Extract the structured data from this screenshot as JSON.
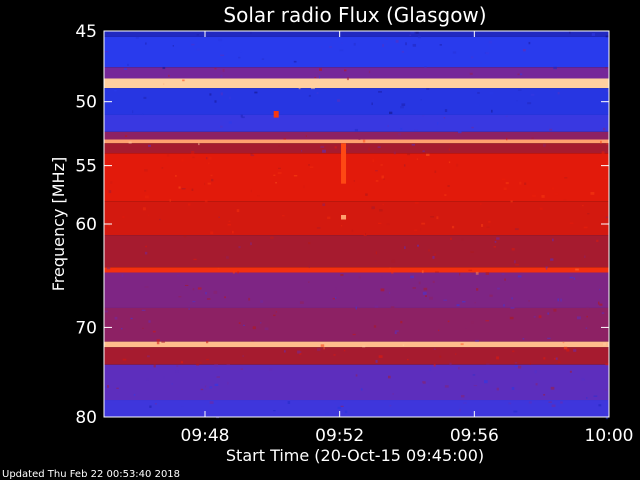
{
  "chart_data": {
    "type": "heatmap",
    "title": "Solar radio Flux (Glasgow)",
    "xlabel": "Start Time (20-Oct-15 09:45:00)",
    "ylabel": "Frequency [MHz]",
    "x_ticks": [
      "09:48",
      "09:52",
      "09:56",
      "10:00"
    ],
    "x_tick_minutes": [
      48,
      52,
      56,
      60
    ],
    "xlim_minutes": [
      45,
      60
    ],
    "y_ticks": [
      45,
      50,
      55,
      60,
      70,
      80
    ],
    "ylim": [
      45,
      80
    ],
    "y_scale": "log",
    "colormap": [
      "#00003a",
      "#1a1aa0",
      "#2a3cf0",
      "#6a2ab0",
      "#b01818",
      "#e81a0a",
      "#ff4a14",
      "#ffd0a0"
    ],
    "bands": [
      {
        "from": 45.0,
        "to": 45.4,
        "level": 0.2
      },
      {
        "from": 45.4,
        "to": 47.5,
        "level": 0.28
      },
      {
        "from": 47.5,
        "to": 48.3,
        "level": 0.45
      },
      {
        "from": 48.3,
        "to": 49.0,
        "level": 1.0
      },
      {
        "from": 49.0,
        "to": 51.0,
        "level": 0.26
      },
      {
        "from": 51.0,
        "to": 52.3,
        "level": 0.32
      },
      {
        "from": 52.3,
        "to": 52.9,
        "level": 0.5
      },
      {
        "from": 52.9,
        "to": 53.2,
        "level": 0.95
      },
      {
        "from": 53.2,
        "to": 54.0,
        "level": 0.55
      },
      {
        "from": 54.0,
        "to": 58.0,
        "level": 0.7
      },
      {
        "from": 58.0,
        "to": 61.0,
        "level": 0.66
      },
      {
        "from": 61.0,
        "to": 64.0,
        "level": 0.55
      },
      {
        "from": 64.0,
        "to": 64.5,
        "level": 0.78
      },
      {
        "from": 64.5,
        "to": 68.0,
        "level": 0.47
      },
      {
        "from": 68.0,
        "to": 71.5,
        "level": 0.5
      },
      {
        "from": 71.5,
        "to": 72.1,
        "level": 0.98
      },
      {
        "from": 72.1,
        "to": 74.0,
        "level": 0.55
      },
      {
        "from": 74.0,
        "to": 78.0,
        "level": 0.4
      },
      {
        "from": 78.0,
        "to": 80.0,
        "level": 0.33
      }
    ],
    "bursts": [
      {
        "t": 52.1,
        "f_from": 53.2,
        "f_to": 56.5,
        "level": 0.85
      },
      {
        "t": 52.1,
        "f_from": 59.2,
        "f_to": 59.6,
        "level": 0.95
      },
      {
        "t": 50.1,
        "f_from": 50.7,
        "f_to": 51.2,
        "level": 0.8
      }
    ]
  },
  "footer": {
    "updated": "Updated Thu Feb 22 00:53:40 2018"
  }
}
